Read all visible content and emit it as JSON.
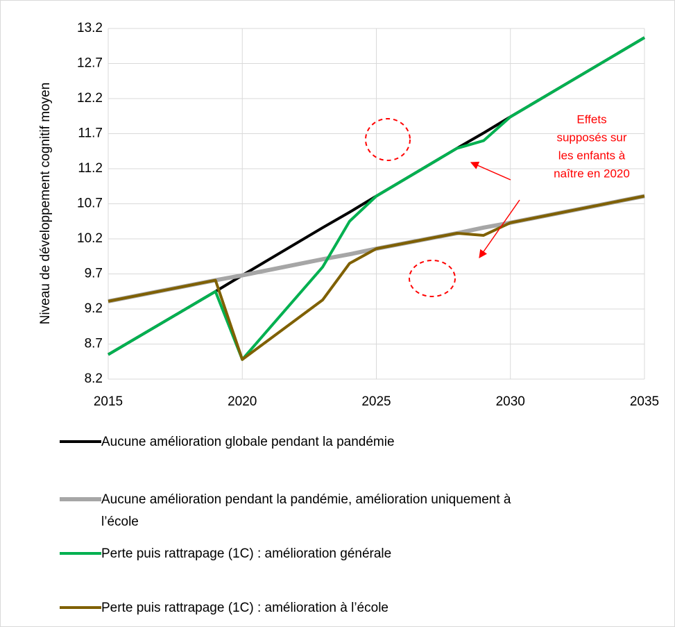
{
  "chart_data": {
    "type": "line",
    "y_label": "Niveau de développement cognitif moyen",
    "annotation": [
      "Effets",
      "supposés sur",
      "les enfants à",
      "naître en 2020"
    ],
    "x": [
      2015,
      2019,
      2020,
      2023,
      2024,
      2025,
      2028,
      2029,
      2030,
      2035
    ],
    "series": [
      {
        "name": "Aucune amélioration globale pendant la pandémie",
        "color": "#000000",
        "width": 4,
        "values": [
          8.55,
          9.45,
          9.68,
          10.36,
          10.58,
          10.81,
          11.49,
          11.71,
          11.94,
          13.07
        ]
      },
      {
        "name": "Aucune amélioration pendant la pandémie, amélioration uniquement à l’école",
        "color": "#a6a6a6",
        "width": 6,
        "values": [
          9.31,
          9.61,
          9.68,
          9.91,
          9.98,
          10.06,
          10.28,
          10.36,
          10.43,
          10.81
        ]
      },
      {
        "name": "Perte puis rattrapage (1C) : amélioration générale",
        "color": "#00b050",
        "width": 4,
        "values": [
          8.55,
          9.45,
          8.48,
          9.8,
          10.45,
          10.81,
          11.49,
          11.6,
          11.94,
          13.07
        ]
      },
      {
        "name": "Perte puis rattrapage (1C) : amélioration à l’école",
        "color": "#7f6000",
        "width": 4,
        "values": [
          9.31,
          9.61,
          8.48,
          9.33,
          9.85,
          10.06,
          10.28,
          10.25,
          10.43,
          10.81
        ]
      }
    ],
    "xlim": [
      2015,
      2035
    ],
    "xticks": [
      2015,
      2020,
      2025,
      2030,
      2035
    ],
    "ylim": [
      8.2,
      13.2
    ],
    "yticks": [
      8.2,
      8.7,
      9.2,
      9.7,
      10.2,
      10.7,
      11.2,
      11.7,
      12.2,
      12.7,
      13.2
    ],
    "grid": true
  }
}
